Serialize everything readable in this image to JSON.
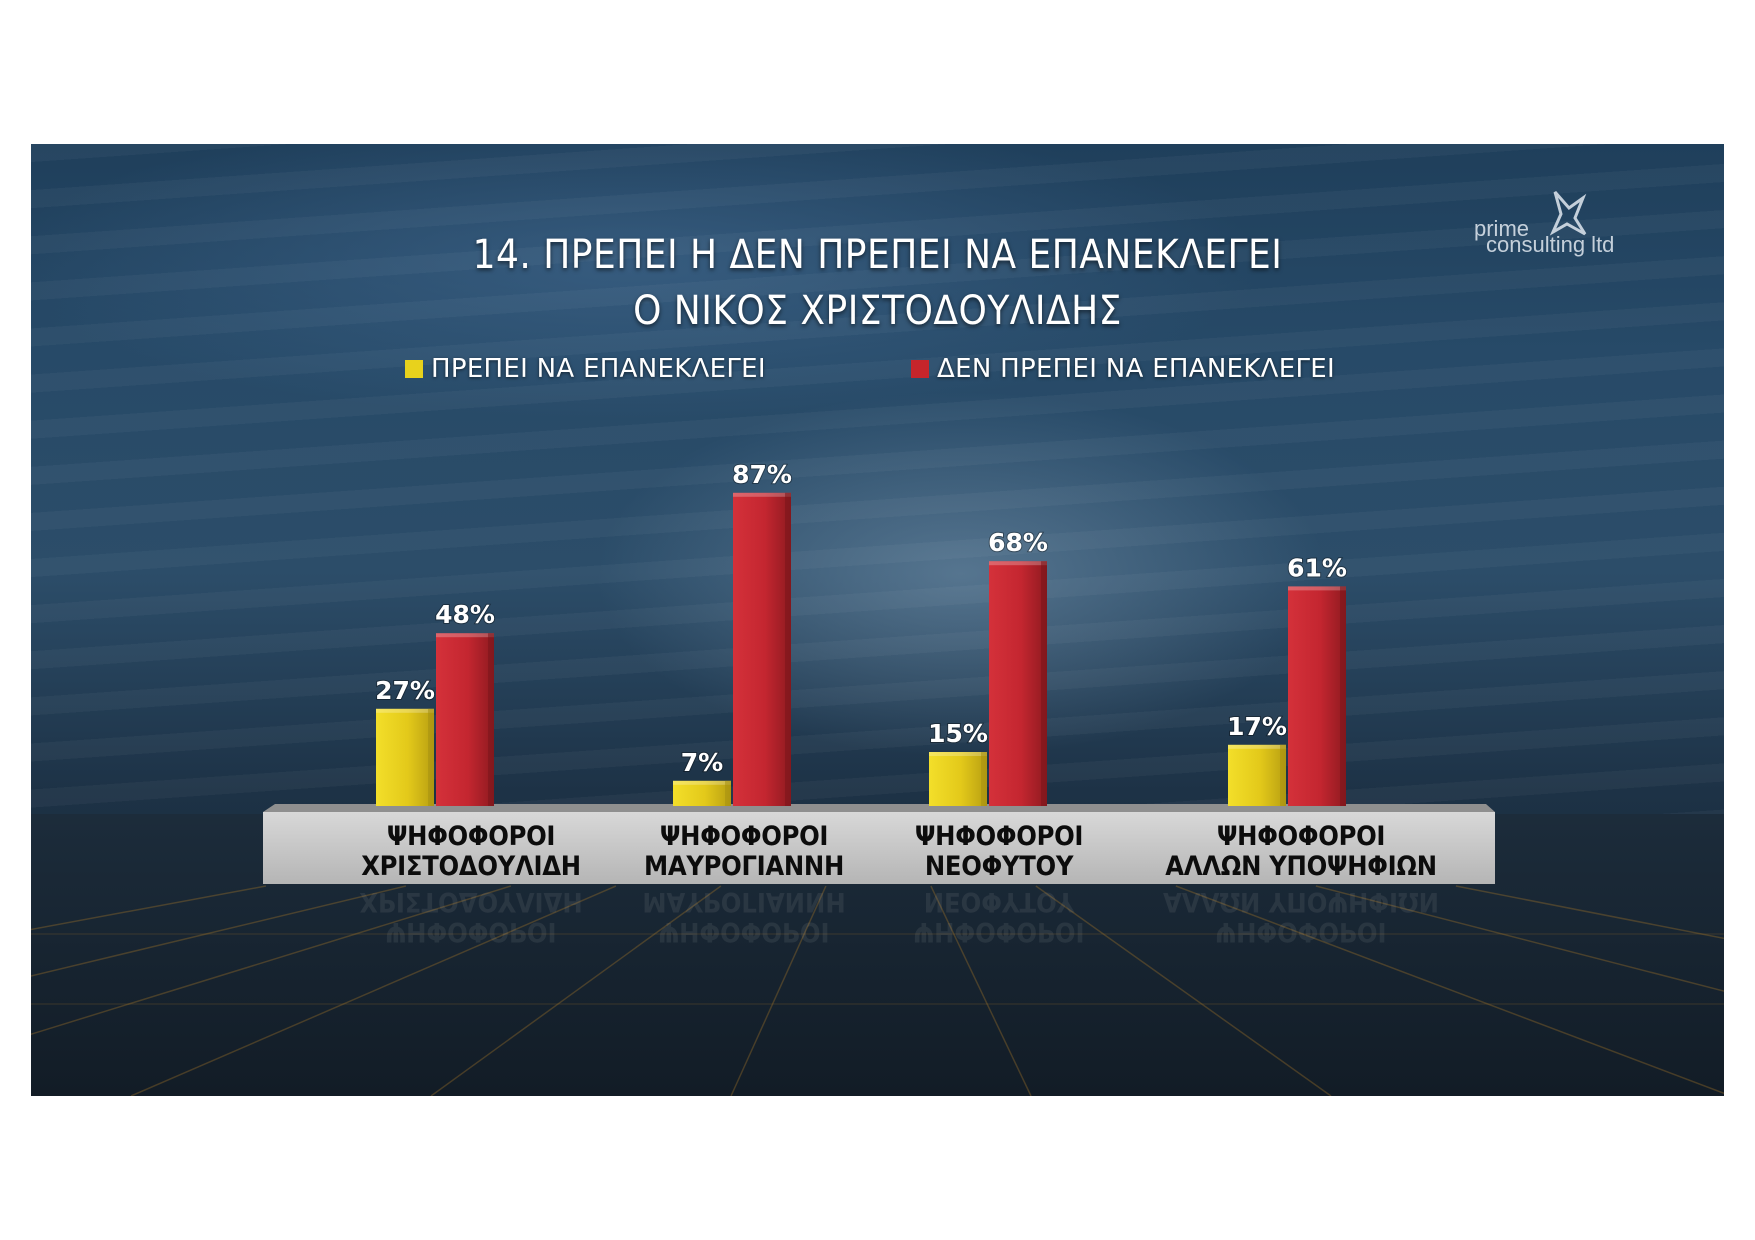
{
  "title": {
    "line1": "14. ΠΡΕΠΕΙ Η ΔΕΝ ΠΡΕΠΕΙ ΝΑ ΕΠΑΝΕΚΛΕΓΕΙ",
    "line2": "Ο ΝΙΚΟΣ ΧΡΙΣΤΟΔΟΥΛΙΔΗΣ"
  },
  "logo": {
    "word1": "prime",
    "word2": "consulting ltd"
  },
  "colors": {
    "yes": "#e8d21c",
    "no": "#c6252b",
    "plinth": "#c9c9c9"
  },
  "chart_data": {
    "type": "bar",
    "title": "14. ΠΡΕΠΕΙ Η ΔΕΝ ΠΡΕΠΕΙ ΝΑ ΕΠΑΝΕΚΛΕΓΕΙ Ο ΝΙΚΟΣ ΧΡΙΣΤΟΔΟΥΛΙΔΗΣ",
    "categories": [
      [
        "ΨΗΦΟΦΟΡΟΙ",
        "ΧΡΙΣΤΟΔΟΥΛΙΔΗ"
      ],
      [
        "ΨΗΦΟΦΟΡΟΙ",
        "ΜΑΥΡΟΓΙΑΝΝΗ"
      ],
      [
        "ΨΗΦΟΦΟΡΟΙ",
        "ΝΕΟΦΥΤΟΥ"
      ],
      [
        "ΨΗΦΟΦΟΡΟΙ",
        "ΑΛΛΩΝ ΥΠΟΨΗΦΙΩΝ"
      ]
    ],
    "series": [
      {
        "name": "ΠΡΕΠΕΙ ΝΑ ΕΠΑΝΕΚΛΕΓΕΙ",
        "values": [
          27,
          7,
          15,
          17
        ],
        "labels": [
          "27%",
          "7%",
          "15%",
          "17%"
        ]
      },
      {
        "name": "ΔΕΝ ΠΡΕΠΕΙ ΝΑ ΕΠΑΝΕΚΛΕΓΕΙ",
        "values": [
          48,
          87,
          68,
          61
        ],
        "labels": [
          "48%",
          "87%",
          "68%",
          "61%"
        ]
      }
    ],
    "ylim": [
      0,
      100
    ],
    "grid": false,
    "legend": "top"
  }
}
